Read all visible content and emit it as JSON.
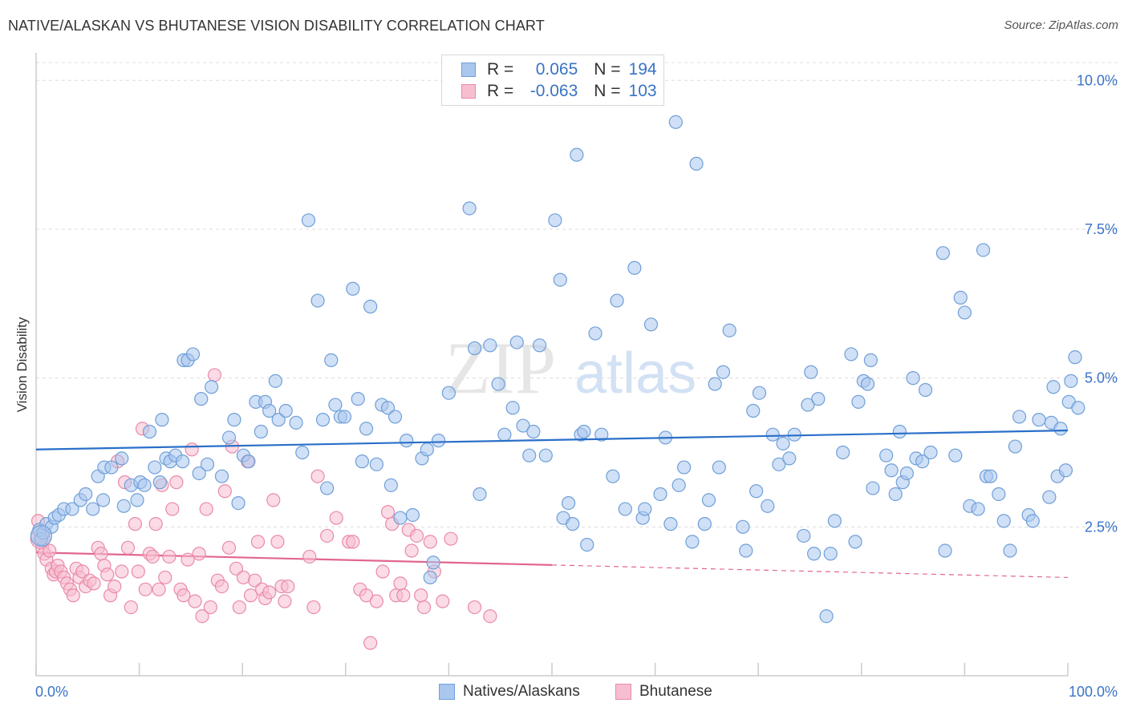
{
  "header": {
    "title": "NATIVE/ALASKAN VS BHUTANESE VISION DISABILITY CORRELATION CHART",
    "source": "Source: ZipAtlas.com"
  },
  "legend": {
    "rows": [
      {
        "r_label": "R =",
        "r_value": "0.065",
        "n_label": "N =",
        "n_value": "194"
      },
      {
        "r_label": "R =",
        "r_value": "-0.063",
        "n_label": "N =",
        "n_value": "103"
      }
    ]
  },
  "series_legend": {
    "natives": "Natives/Alaskans",
    "bhutanese": "Bhutanese"
  },
  "colors": {
    "natives_fill": "#aac7ee",
    "natives_stroke": "#6f9fd8",
    "natives_line": "#2a6fc9",
    "bhutanese_fill": "#f7bed0",
    "bhutanese_stroke": "#e98aa9",
    "bhutanese_line": "#e2668f",
    "grid": "#dcdcdc",
    "tick_label": "#3a73c6"
  },
  "watermark": {
    "zip": "ZIP",
    "atlas": "atlas"
  },
  "chart_data": {
    "type": "scatter",
    "title": "NATIVE/ALASKAN VS BHUTANESE VISION DISABILITY CORRELATION CHART",
    "xlabel": "",
    "ylabel": "Vision Disability",
    "xlim": [
      0,
      100
    ],
    "ylim": [
      0,
      10.3
    ],
    "x_tick_labels": [
      "0.0%",
      "100.0%"
    ],
    "y_ticks": [
      2.5,
      5.0,
      7.5,
      10.0
    ],
    "y_tick_labels": [
      "2.5%",
      "5.0%",
      "7.5%",
      "10.0%"
    ],
    "grid": true,
    "series": [
      {
        "name": "Natives/Alaskans",
        "R": 0.065,
        "N": 194,
        "trend": {
          "x": [
            0,
            100
          ],
          "y": [
            3.8,
            4.12
          ],
          "style": "solid"
        },
        "points": [
          [
            0.3,
            2.45
          ],
          [
            0.5,
            2.3
          ],
          [
            0.7,
            2.4
          ],
          [
            1.0,
            2.55
          ],
          [
            1.5,
            2.5
          ],
          [
            1.8,
            2.65
          ],
          [
            2.2,
            2.7
          ],
          [
            2.7,
            2.8
          ],
          [
            3.5,
            2.8
          ],
          [
            4.3,
            2.95
          ],
          [
            4.8,
            3.05
          ],
          [
            5.5,
            2.8
          ],
          [
            6.0,
            3.35
          ],
          [
            6.5,
            2.95
          ],
          [
            6.6,
            3.5
          ],
          [
            7.3,
            3.5
          ],
          [
            8.3,
            3.65
          ],
          [
            8.5,
            2.85
          ],
          [
            9.2,
            3.2
          ],
          [
            9.8,
            2.95
          ],
          [
            10.1,
            3.25
          ],
          [
            10.5,
            3.2
          ],
          [
            11.0,
            4.1
          ],
          [
            11.5,
            3.5
          ],
          [
            12.0,
            3.25
          ],
          [
            12.2,
            4.3
          ],
          [
            12.6,
            3.65
          ],
          [
            13.0,
            3.6
          ],
          [
            13.5,
            3.7
          ],
          [
            14.2,
            3.6
          ],
          [
            14.3,
            5.3
          ],
          [
            14.7,
            5.3
          ],
          [
            15.2,
            5.4
          ],
          [
            15.8,
            3.4
          ],
          [
            16.0,
            4.65
          ],
          [
            16.6,
            3.55
          ],
          [
            17.0,
            4.85
          ],
          [
            18.0,
            3.35
          ],
          [
            18.7,
            4.0
          ],
          [
            19.2,
            4.3
          ],
          [
            19.6,
            2.9
          ],
          [
            20.1,
            3.7
          ],
          [
            20.6,
            3.6
          ],
          [
            21.3,
            4.6
          ],
          [
            21.8,
            4.1
          ],
          [
            22.2,
            4.6
          ],
          [
            22.6,
            4.45
          ],
          [
            23.2,
            4.95
          ],
          [
            23.5,
            4.3
          ],
          [
            24.2,
            4.45
          ],
          [
            25.2,
            4.25
          ],
          [
            25.8,
            3.75
          ],
          [
            26.4,
            7.65
          ],
          [
            27.3,
            6.3
          ],
          [
            27.8,
            4.3
          ],
          [
            28.2,
            3.15
          ],
          [
            28.6,
            5.3
          ],
          [
            29.0,
            4.55
          ],
          [
            29.5,
            4.35
          ],
          [
            29.9,
            4.35
          ],
          [
            30.7,
            6.5
          ],
          [
            31.2,
            4.65
          ],
          [
            31.6,
            3.6
          ],
          [
            32.0,
            4.15
          ],
          [
            32.4,
            6.2
          ],
          [
            33.0,
            3.55
          ],
          [
            33.5,
            4.55
          ],
          [
            34.1,
            4.5
          ],
          [
            34.4,
            3.2
          ],
          [
            34.8,
            4.35
          ],
          [
            35.3,
            2.65
          ],
          [
            35.9,
            3.95
          ],
          [
            36.5,
            2.7
          ],
          [
            37.4,
            3.65
          ],
          [
            37.9,
            3.8
          ],
          [
            38.2,
            1.65
          ],
          [
            38.5,
            1.9
          ],
          [
            39.0,
            3.95
          ],
          [
            40.0,
            4.75
          ],
          [
            42.0,
            7.85
          ],
          [
            42.5,
            5.5
          ],
          [
            43.0,
            3.05
          ],
          [
            44.0,
            5.55
          ],
          [
            44.8,
            4.9
          ],
          [
            45.4,
            4.05
          ],
          [
            46.2,
            4.5
          ],
          [
            46.6,
            5.6
          ],
          [
            47.2,
            4.2
          ],
          [
            47.8,
            3.7
          ],
          [
            48.2,
            4.1
          ],
          [
            48.8,
            5.55
          ],
          [
            49.4,
            3.7
          ],
          [
            50.3,
            7.65
          ],
          [
            50.8,
            6.65
          ],
          [
            51.1,
            2.65
          ],
          [
            51.6,
            2.9
          ],
          [
            52.0,
            2.55
          ],
          [
            52.4,
            8.75
          ],
          [
            52.8,
            4.05
          ],
          [
            53.1,
            4.1
          ],
          [
            53.4,
            2.2
          ],
          [
            54.2,
            5.75
          ],
          [
            54.8,
            4.05
          ],
          [
            55.9,
            3.35
          ],
          [
            56.3,
            6.3
          ],
          [
            57.1,
            2.8
          ],
          [
            58.0,
            6.85
          ],
          [
            58.8,
            2.65
          ],
          [
            59.0,
            2.8
          ],
          [
            59.6,
            5.9
          ],
          [
            60.5,
            3.05
          ],
          [
            61.0,
            4.0
          ],
          [
            61.5,
            2.55
          ],
          [
            62.0,
            9.3
          ],
          [
            62.3,
            3.2
          ],
          [
            62.8,
            3.5
          ],
          [
            63.6,
            2.25
          ],
          [
            64.0,
            8.6
          ],
          [
            64.8,
            2.55
          ],
          [
            65.2,
            2.95
          ],
          [
            65.8,
            4.9
          ],
          [
            66.2,
            3.5
          ],
          [
            66.6,
            5.1
          ],
          [
            67.2,
            5.8
          ],
          [
            68.5,
            2.5
          ],
          [
            68.8,
            2.1
          ],
          [
            69.5,
            4.45
          ],
          [
            69.8,
            3.1
          ],
          [
            70.1,
            4.75
          ],
          [
            70.9,
            2.85
          ],
          [
            71.4,
            4.05
          ],
          [
            72.0,
            3.55
          ],
          [
            72.4,
            3.9
          ],
          [
            73.0,
            3.65
          ],
          [
            73.5,
            4.05
          ],
          [
            74.4,
            2.35
          ],
          [
            74.8,
            4.55
          ],
          [
            75.1,
            5.1
          ],
          [
            75.4,
            2.05
          ],
          [
            75.8,
            4.65
          ],
          [
            76.6,
            1.0
          ],
          [
            77.0,
            2.05
          ],
          [
            77.4,
            2.6
          ],
          [
            78.2,
            3.75
          ],
          [
            79.0,
            5.4
          ],
          [
            79.4,
            2.25
          ],
          [
            79.7,
            4.6
          ],
          [
            80.2,
            4.95
          ],
          [
            80.6,
            4.9
          ],
          [
            80.9,
            5.3
          ],
          [
            81.1,
            3.15
          ],
          [
            82.4,
            3.7
          ],
          [
            82.9,
            3.45
          ],
          [
            83.3,
            3.05
          ],
          [
            83.7,
            4.1
          ],
          [
            84.0,
            3.25
          ],
          [
            84.4,
            3.4
          ],
          [
            85.0,
            5.0
          ],
          [
            85.3,
            3.65
          ],
          [
            85.9,
            3.6
          ],
          [
            86.2,
            4.8
          ],
          [
            86.7,
            3.75
          ],
          [
            87.9,
            7.1
          ],
          [
            88.1,
            2.1
          ],
          [
            89.1,
            3.7
          ],
          [
            89.6,
            6.35
          ],
          [
            90.0,
            6.1
          ],
          [
            90.5,
            2.85
          ],
          [
            91.3,
            2.8
          ],
          [
            91.8,
            7.15
          ],
          [
            92.1,
            3.35
          ],
          [
            92.5,
            3.35
          ],
          [
            93.3,
            3.05
          ],
          [
            93.8,
            2.6
          ],
          [
            94.4,
            2.1
          ],
          [
            94.9,
            3.85
          ],
          [
            95.3,
            4.35
          ],
          [
            96.2,
            2.7
          ],
          [
            96.6,
            2.6
          ],
          [
            97.2,
            4.3
          ],
          [
            98.2,
            3.0
          ],
          [
            98.4,
            4.25
          ],
          [
            98.6,
            4.85
          ],
          [
            99.0,
            3.35
          ],
          [
            99.3,
            4.15
          ],
          [
            99.8,
            3.45
          ],
          [
            100.1,
            4.6
          ],
          [
            100.3,
            4.95
          ],
          [
            100.7,
            5.35
          ],
          [
            101.0,
            4.5
          ]
        ]
      },
      {
        "name": "Bhutanese",
        "R": -0.063,
        "N": 103,
        "trend": {
          "x": [
            0,
            50
          ],
          "y": [
            2.07,
            1.86
          ],
          "style": "solid",
          "extension": {
            "x": [
              50,
              100
            ],
            "y": [
              1.86,
              1.65
            ],
            "style": "dashed"
          }
        },
        "points": [
          [
            0.2,
            2.6
          ],
          [
            0.4,
            2.3
          ],
          [
            0.6,
            2.15
          ],
          [
            0.8,
            2.05
          ],
          [
            1.0,
            1.95
          ],
          [
            1.3,
            2.1
          ],
          [
            1.5,
            1.8
          ],
          [
            1.7,
            1.7
          ],
          [
            1.9,
            1.75
          ],
          [
            2.1,
            1.85
          ],
          [
            2.4,
            1.75
          ],
          [
            2.7,
            1.65
          ],
          [
            3.0,
            1.55
          ],
          [
            3.3,
            1.45
          ],
          [
            3.6,
            1.35
          ],
          [
            3.9,
            1.8
          ],
          [
            4.2,
            1.65
          ],
          [
            4.5,
            1.75
          ],
          [
            4.8,
            1.5
          ],
          [
            5.2,
            1.6
          ],
          [
            5.6,
            1.55
          ],
          [
            6.0,
            2.15
          ],
          [
            6.3,
            2.05
          ],
          [
            6.6,
            1.85
          ],
          [
            6.9,
            1.7
          ],
          [
            7.2,
            1.35
          ],
          [
            7.6,
            1.5
          ],
          [
            7.9,
            3.6
          ],
          [
            8.3,
            1.75
          ],
          [
            8.6,
            3.25
          ],
          [
            8.9,
            2.15
          ],
          [
            9.2,
            1.15
          ],
          [
            9.6,
            2.55
          ],
          [
            9.9,
            1.75
          ],
          [
            10.3,
            4.15
          ],
          [
            10.6,
            1.45
          ],
          [
            11.0,
            2.05
          ],
          [
            11.3,
            2.0
          ],
          [
            11.6,
            2.55
          ],
          [
            11.9,
            1.45
          ],
          [
            12.2,
            3.2
          ],
          [
            12.5,
            1.65
          ],
          [
            12.9,
            2.0
          ],
          [
            13.2,
            2.8
          ],
          [
            13.6,
            3.25
          ],
          [
            14.0,
            1.45
          ],
          [
            14.3,
            1.35
          ],
          [
            14.7,
            1.95
          ],
          [
            15.1,
            3.8
          ],
          [
            15.4,
            1.25
          ],
          [
            15.8,
            2.05
          ],
          [
            16.1,
            1.0
          ],
          [
            16.5,
            2.8
          ],
          [
            16.9,
            1.15
          ],
          [
            17.3,
            5.05
          ],
          [
            17.6,
            1.6
          ],
          [
            18.0,
            1.5
          ],
          [
            18.3,
            3.1
          ],
          [
            18.7,
            2.15
          ],
          [
            19.0,
            3.85
          ],
          [
            19.4,
            1.8
          ],
          [
            19.7,
            1.15
          ],
          [
            20.1,
            1.65
          ],
          [
            20.5,
            3.6
          ],
          [
            20.8,
            1.35
          ],
          [
            21.2,
            1.6
          ],
          [
            21.5,
            2.25
          ],
          [
            21.9,
            1.45
          ],
          [
            22.2,
            1.3
          ],
          [
            22.6,
            1.4
          ],
          [
            23.0,
            2.95
          ],
          [
            23.4,
            2.25
          ],
          [
            23.8,
            1.5
          ],
          [
            24.1,
            1.25
          ],
          [
            24.4,
            1.5
          ],
          [
            26.5,
            2.0
          ],
          [
            26.9,
            1.15
          ],
          [
            27.3,
            3.35
          ],
          [
            28.2,
            2.35
          ],
          [
            29.1,
            2.65
          ],
          [
            30.3,
            2.25
          ],
          [
            30.7,
            2.25
          ],
          [
            31.4,
            1.45
          ],
          [
            32.0,
            1.35
          ],
          [
            32.4,
            0.55
          ],
          [
            33.0,
            1.25
          ],
          [
            33.6,
            1.75
          ],
          [
            34.1,
            2.75
          ],
          [
            34.5,
            2.55
          ],
          [
            34.9,
            1.35
          ],
          [
            35.3,
            1.55
          ],
          [
            35.6,
            1.35
          ],
          [
            36.1,
            2.45
          ],
          [
            36.4,
            2.1
          ],
          [
            36.9,
            2.35
          ],
          [
            37.3,
            1.35
          ],
          [
            37.6,
            1.15
          ],
          [
            38.2,
            2.25
          ],
          [
            38.6,
            1.75
          ],
          [
            39.4,
            1.25
          ],
          [
            40.2,
            2.3
          ],
          [
            42.5,
            1.15
          ],
          [
            44.0,
            1.0
          ]
        ]
      }
    ]
  }
}
